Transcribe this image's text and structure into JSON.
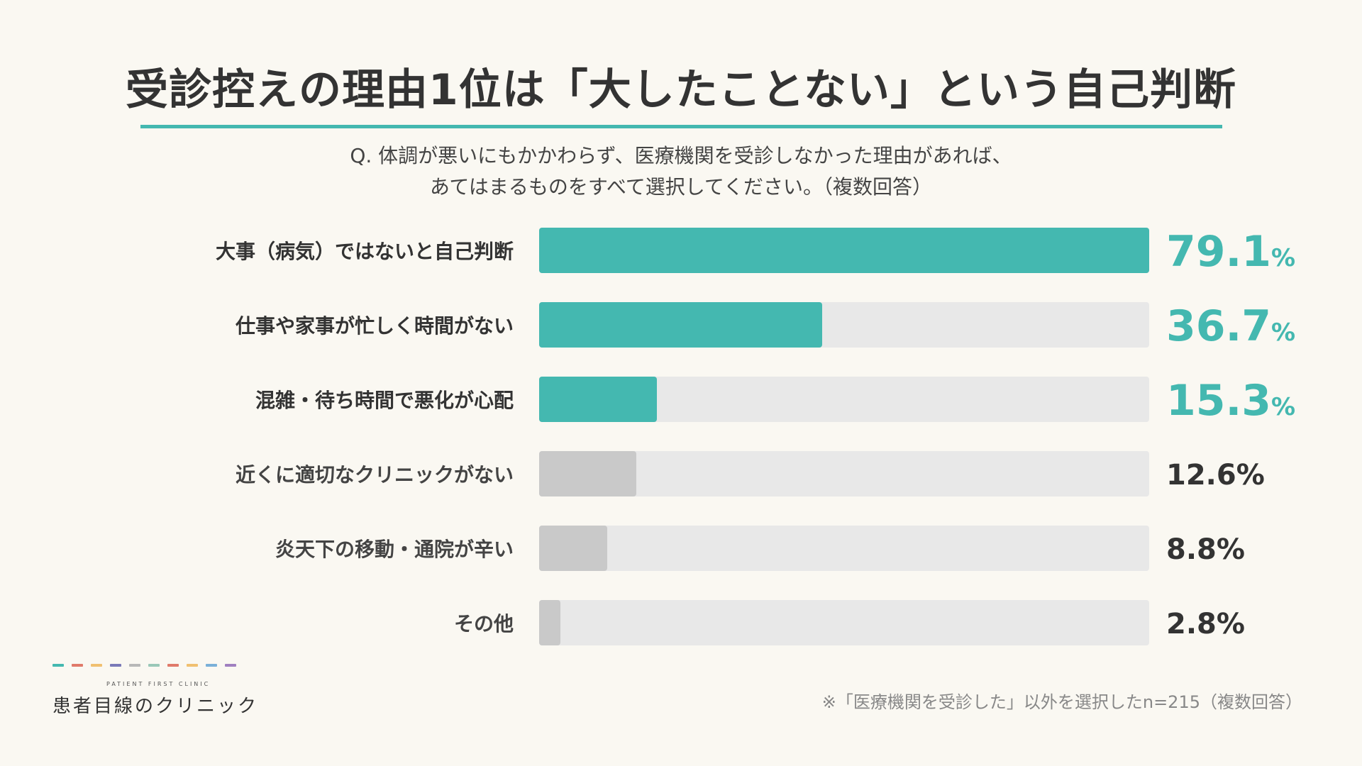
{
  "title": "受診控えの理由1位は「大したことない」という自己判断",
  "question": {
    "line1": "Q. 体調が悪いにもかかわらず、医療機関を受診しなかった理由があれば、",
    "line2": "あてはまるものをすべて選択してください。（複数回答）"
  },
  "chart_data": {
    "type": "bar",
    "orientation": "horizontal",
    "categories": [
      "大事（病気）ではないと自己判断",
      "仕事や家事が忙しく時間がない",
      "混雑・待ち時間で悪化が心配",
      "近くに適切なクリニックがない",
      "炎天下の移動・通院が辛い",
      "その他"
    ],
    "values": [
      79.1,
      36.7,
      15.3,
      12.6,
      8.8,
      2.8
    ],
    "value_labels": [
      "79.1",
      "36.7",
      "15.3",
      "12.6",
      "8.8",
      "2.8"
    ],
    "unit": "%",
    "highlighted": [
      true,
      true,
      true,
      false,
      false,
      false
    ],
    "xlim": [
      0,
      79.1
    ],
    "colors": {
      "highlight": "#44b8b0",
      "muted": "#c9c9c9",
      "track": "#e8e8e8"
    }
  },
  "footnote": "※「医療機関を受診した」以外を選択したn=215（複数回答）",
  "logo": {
    "subtitle": "PATIENT FIRST CLINIC",
    "name": "患者目線のクリニック",
    "dash_colors": [
      "#44b8b0",
      "#e07a6a",
      "#f0c070",
      "#7a7ab8",
      "#b8b8b8",
      "#9ac8b8",
      "#e07a6a",
      "#f0c070",
      "#7ab0d8",
      "#a080c0"
    ]
  }
}
